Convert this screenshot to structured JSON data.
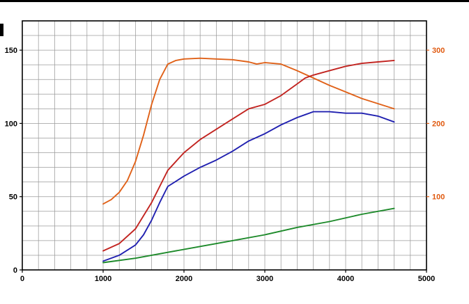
{
  "frame": {
    "background_color": "#ffffff",
    "border_color": "#000000"
  },
  "chart_data": {
    "type": "line",
    "title": "",
    "xlabel": "",
    "ylabel_left": "",
    "ylabel_right": "",
    "legend": "none",
    "grid": {
      "on": true,
      "color": "#9b9b9b",
      "frame_color": "#000000",
      "x_minor_step": 200,
      "y_left_minor_step": 10
    },
    "x": {
      "min": 0,
      "max": 5000,
      "major_ticks": [
        0,
        1000,
        2000,
        3000,
        4000,
        5000
      ],
      "tick_labels": [
        "0",
        "1000",
        "2000",
        "3000",
        "4000",
        "5000"
      ],
      "label_color": "#000000"
    },
    "y_left": {
      "min": 0,
      "max": 170,
      "ticks": [
        0,
        50,
        100,
        150
      ],
      "tick_labels": [
        "0",
        "50",
        "100",
        "150"
      ],
      "label_color": "#000000"
    },
    "y_right": {
      "min": 0,
      "max": 340,
      "ticks": [
        100,
        200,
        300
      ],
      "tick_labels": [
        "100",
        "200",
        "300"
      ],
      "label_color": "#e05a10"
    },
    "series": [
      {
        "name": "orange-curve",
        "axis": "right",
        "color": "#e06118",
        "x": [
          1000,
          1100,
          1200,
          1300,
          1400,
          1500,
          1600,
          1700,
          1800,
          1900,
          2000,
          2200,
          2400,
          2600,
          2800,
          2900,
          3000,
          3200,
          3400,
          3600,
          3800,
          4000,
          4200,
          4400,
          4600
        ],
        "y": [
          90,
          96,
          106,
          122,
          148,
          184,
          226,
          260,
          281,
          286,
          288,
          289,
          288,
          287,
          284,
          281,
          283,
          281,
          272,
          262,
          252,
          243,
          234,
          227,
          220
        ]
      },
      {
        "name": "red-curve",
        "axis": "left",
        "color": "#c22420",
        "x": [
          1000,
          1200,
          1400,
          1600,
          1800,
          2000,
          2200,
          2400,
          2600,
          2800,
          3000,
          3200,
          3400,
          3500,
          3600,
          3800,
          4000,
          4200,
          4400,
          4600
        ],
        "y": [
          13,
          18,
          28,
          46,
          68,
          80,
          89,
          96,
          103,
          110,
          113,
          119,
          127,
          131,
          133,
          136,
          139,
          141,
          142,
          143
        ]
      },
      {
        "name": "blue-curve",
        "axis": "left",
        "color": "#2020b0",
        "x": [
          1000,
          1200,
          1400,
          1500,
          1600,
          1700,
          1800,
          2000,
          2200,
          2400,
          2600,
          2800,
          3000,
          3200,
          3400,
          3500,
          3600,
          3800,
          4000,
          4200,
          4400,
          4600
        ],
        "y": [
          6,
          10,
          17,
          24,
          34,
          46,
          57,
          64,
          70,
          75,
          81,
          88,
          93,
          99,
          104,
          106,
          108,
          108,
          107,
          107,
          105,
          101
        ]
      },
      {
        "name": "green-curve",
        "axis": "left",
        "color": "#1d8a2a",
        "x": [
          1000,
          1400,
          1800,
          2200,
          2600,
          3000,
          3400,
          3800,
          4200,
          4600
        ],
        "y": [
          5,
          8,
          12,
          16,
          20,
          24,
          29,
          33,
          38,
          42
        ]
      }
    ]
  }
}
